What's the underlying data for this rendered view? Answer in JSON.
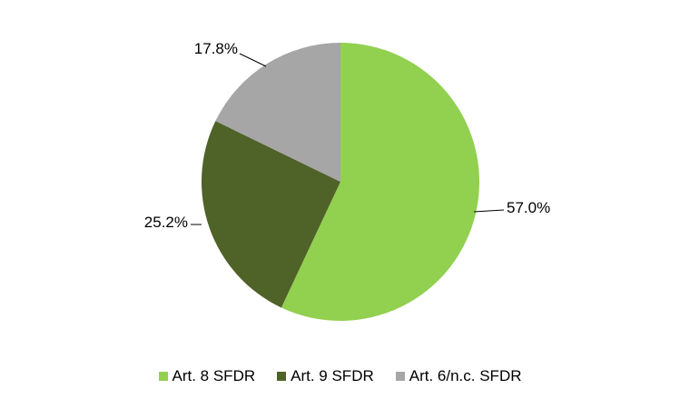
{
  "chart_data": {
    "type": "pie",
    "title": "",
    "categories": [
      "Art. 8 SFDR",
      "Art. 9 SFDR",
      "Art. 6/n.c. SFDR"
    ],
    "values": [
      57.0,
      25.2,
      17.8
    ],
    "labels": [
      "57.0%",
      "25.2%",
      "17.8%"
    ],
    "colors": [
      "#92d050",
      "#4f6228",
      "#a6a6a6"
    ],
    "start_angle": "12 o'clock",
    "direction": "clockwise",
    "legend_position": "bottom"
  }
}
